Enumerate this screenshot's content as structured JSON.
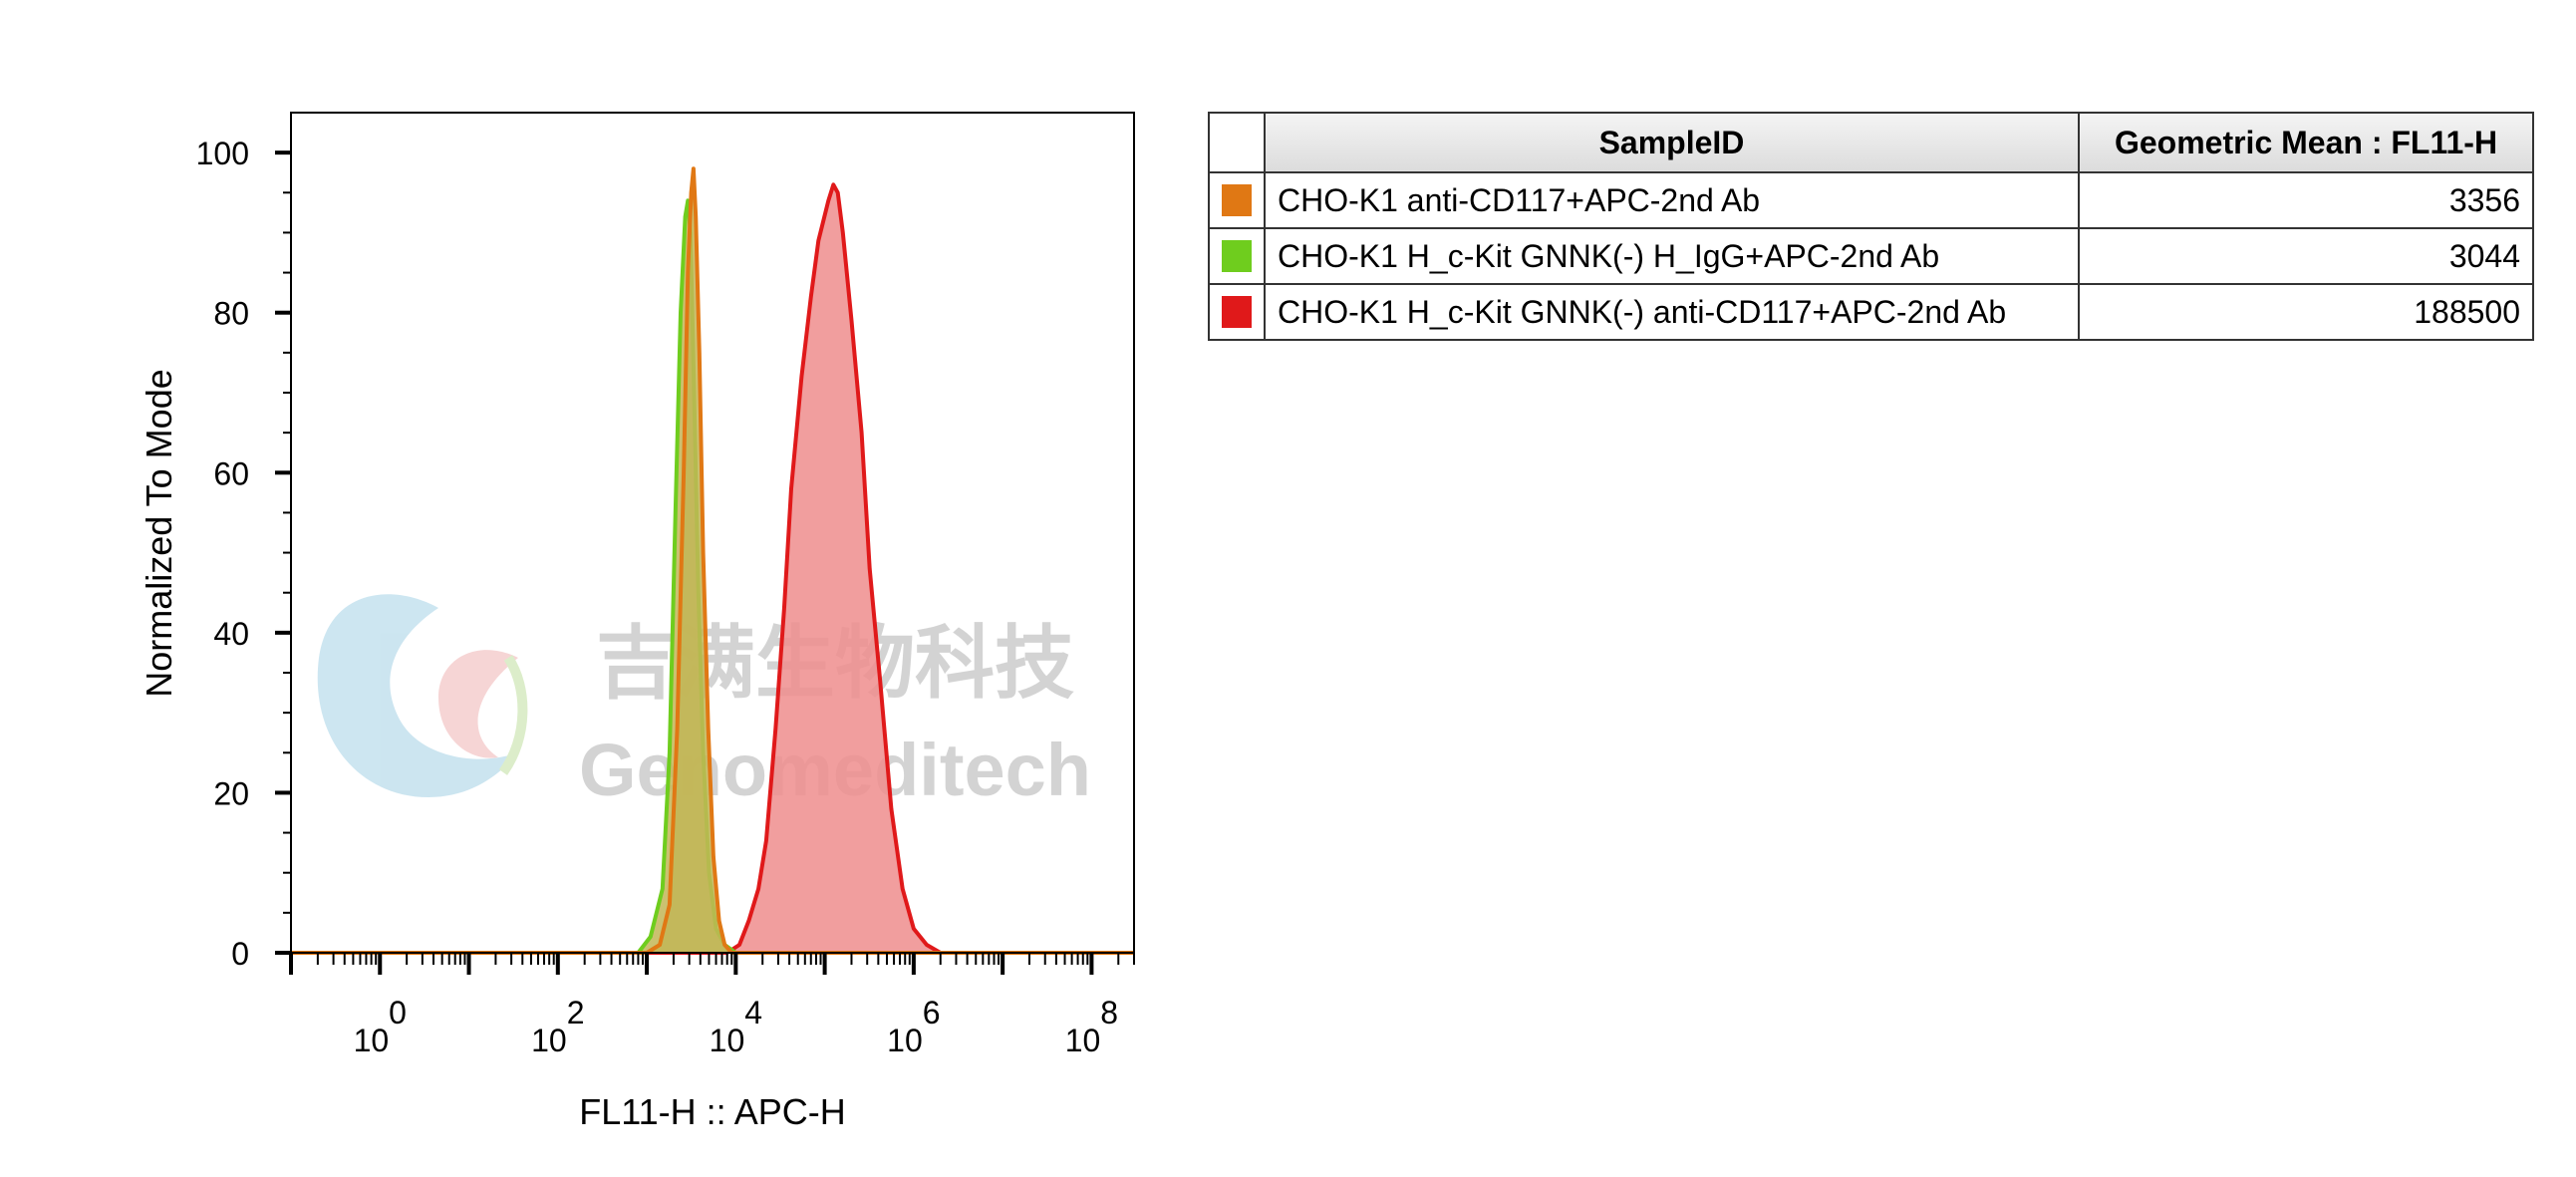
{
  "chart_data": {
    "type": "area",
    "title": "",
    "xlabel": "FL11-H :: APC-H",
    "ylabel": "Normalized To Mode",
    "x_scale": "log",
    "xlim": [
      0.1,
      300000000
    ],
    "ylim": [
      0,
      105
    ],
    "yticks": [
      0,
      20,
      40,
      60,
      80,
      100
    ],
    "xticks": [
      {
        "base": "10",
        "exp": "0",
        "value": 1
      },
      {
        "base": "10",
        "exp": "2",
        "value": 100
      },
      {
        "base": "10",
        "exp": "4",
        "value": 10000
      },
      {
        "base": "10",
        "exp": "6",
        "value": 1000000
      },
      {
        "base": "10",
        "exp": "8",
        "value": 100000000
      }
    ],
    "series": [
      {
        "name": "CHO-K1 H_c-Kit GNNK(-) anti-CD117+APC-2nd Ab",
        "color": "#e0191a",
        "fill": "#ee8d8d",
        "points": [
          [
            0.1,
            0
          ],
          [
            8000,
            0
          ],
          [
            11000,
            1
          ],
          [
            14000,
            4
          ],
          [
            18000,
            8
          ],
          [
            22000,
            14
          ],
          [
            28000,
            28
          ],
          [
            35000,
            43
          ],
          [
            42000,
            58
          ],
          [
            55000,
            72
          ],
          [
            70000,
            82
          ],
          [
            85000,
            89
          ],
          [
            110000,
            94
          ],
          [
            125000,
            96
          ],
          [
            140000,
            95
          ],
          [
            160000,
            90
          ],
          [
            200000,
            79
          ],
          [
            260000,
            65
          ],
          [
            320000,
            48
          ],
          [
            420000,
            34
          ],
          [
            560000,
            18
          ],
          [
            750000,
            8
          ],
          [
            1000000,
            3
          ],
          [
            1400000,
            1
          ],
          [
            2000000,
            0
          ],
          [
            300000000,
            0
          ]
        ]
      },
      {
        "name": "CHO-K1 H_c-Kit GNNK(-) H_IgG+APC-2nd Ab",
        "color": "#6fcd1e",
        "fill": "#c2b657",
        "points": [
          [
            0.1,
            0
          ],
          [
            800,
            0
          ],
          [
            1100,
            2
          ],
          [
            1500,
            8
          ],
          [
            1800,
            25
          ],
          [
            2100,
            55
          ],
          [
            2400,
            80
          ],
          [
            2700,
            92
          ],
          [
            2900,
            94
          ],
          [
            3100,
            90
          ],
          [
            3400,
            70
          ],
          [
            3800,
            45
          ],
          [
            4300,
            25
          ],
          [
            5000,
            10
          ],
          [
            6000,
            3
          ],
          [
            7500,
            1
          ],
          [
            10000,
            0
          ],
          [
            300000000,
            0
          ]
        ]
      },
      {
        "name": "CHO-K1 anti-CD117+APC-2nd Ab",
        "color": "#e07814",
        "fill": "#c2b657",
        "points": [
          [
            0.1,
            0
          ],
          [
            1000,
            0
          ],
          [
            1400,
            1
          ],
          [
            1800,
            6
          ],
          [
            2200,
            28
          ],
          [
            2600,
            60
          ],
          [
            2900,
            85
          ],
          [
            3150,
            95
          ],
          [
            3350,
            98
          ],
          [
            3550,
            92
          ],
          [
            3900,
            75
          ],
          [
            4300,
            50
          ],
          [
            4900,
            28
          ],
          [
            5600,
            12
          ],
          [
            6500,
            4
          ],
          [
            7500,
            1
          ],
          [
            9000,
            0
          ],
          [
            300000000,
            0
          ]
        ]
      }
    ],
    "table": {
      "headers": [
        "SampleID",
        "Geometric Mean : FL11-H"
      ],
      "rows": [
        {
          "color": "#e07814",
          "sample": "CHO-K1 anti-CD117+APC-2nd Ab",
          "mean": "3356"
        },
        {
          "color": "#6fcd1e",
          "sample": "CHO-K1 H_c-Kit GNNK(-) H_IgG+APC-2nd Ab",
          "mean": "3044"
        },
        {
          "color": "#e0191a",
          "sample": "CHO-K1 H_c-Kit GNNK(-) anti-CD117+APC-2nd Ab",
          "mean": "188500"
        }
      ]
    }
  },
  "watermark": {
    "chinese": "吉满生物科技",
    "english": "Genomeditech"
  }
}
